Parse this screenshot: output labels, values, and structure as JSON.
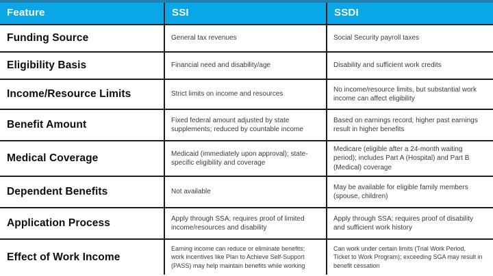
{
  "colors": {
    "header_bg": "#0aa7e8",
    "header_top_stripe": "#1f7fae",
    "divider": "#1c1c1c",
    "header_text": "#ffffff",
    "feature_text": "#0d0d0d",
    "cell_text": "#3a3a3a"
  },
  "table": {
    "columns": [
      "Feature",
      "SSI",
      "SSDI"
    ],
    "rows": [
      {
        "feature": "Funding Source",
        "ssi": "General tax revenues",
        "ssdi": "Social Security payroll taxes"
      },
      {
        "feature": "Eligibility Basis",
        "ssi": "Financial need and disability/age",
        "ssdi": "Disability and sufficient work credits"
      },
      {
        "feature": "Income/Resource Limits",
        "ssi": "Strict limits on income and resources",
        "ssdi": "No income/resource limits, but substantial work income can affect eligibility"
      },
      {
        "feature": "Benefit Amount",
        "ssi": "Fixed federal amount adjusted by state supplements; reduced by countable income",
        "ssdi": "Based on earnings record; higher past earnings result in higher benefits"
      },
      {
        "feature": "Medical Coverage",
        "ssi": "Medicaid (immediately upon approval); state-specific eligibility and coverage",
        "ssdi": "Medicare (eligible after a 24-month waiting period); includes Part A (Hospital) and Part B (Medical) coverage"
      },
      {
        "feature": "Dependent Benefits",
        "ssi": "Not available",
        "ssdi": "May be available for eligible family members (spouse, children)"
      },
      {
        "feature": "Application Process",
        "ssi": "Apply through SSA; requires proof of limited income/resources and disability",
        "ssdi": "Apply through SSA; requires proof of disability and sufficient work history"
      },
      {
        "feature": "Effect of Work Income",
        "ssi": "Earning income can reduce or eliminate benefits; work incentives like Plan to Achieve Self-Support (PASS) may help maintain benefits while working",
        "ssdi": "Can work under certain limits (Trial Work Period, Ticket to Work Program); exceeding SGA may result in benefit cessation"
      }
    ]
  }
}
